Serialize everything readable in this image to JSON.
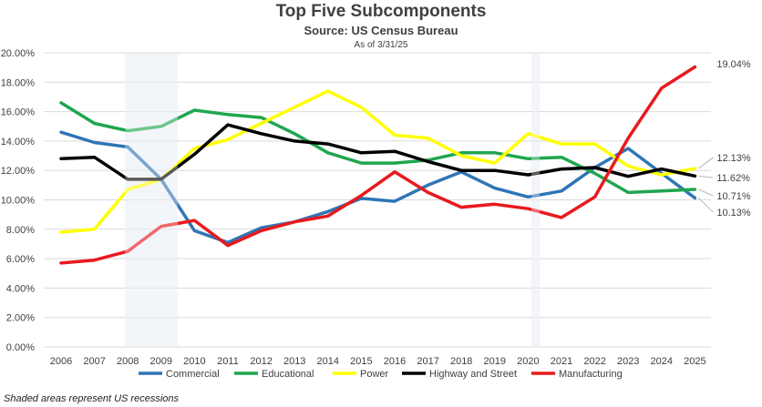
{
  "chart_data": {
    "type": "line",
    "title": "Top Five Subcomponents",
    "subtitle": "Source: US Census Bureau",
    "note": "As of 3/31/25",
    "x": [
      "2006",
      "2007",
      "2008",
      "2009",
      "2010",
      "2011",
      "2012",
      "2013",
      "2014",
      "2015",
      "2016",
      "2017",
      "2018",
      "2019",
      "2020",
      "2021",
      "2022",
      "2023",
      "2024",
      "2025"
    ],
    "ylim": [
      0,
      20
    ],
    "yticks": [
      "0.00%",
      "2.00%",
      "4.00%",
      "6.00%",
      "8.00%",
      "10.00%",
      "12.00%",
      "14.00%",
      "16.00%",
      "18.00%",
      "20.00%"
    ],
    "recessions": [
      [
        2007.92,
        2009.5
      ],
      [
        2020.1,
        2020.35
      ]
    ],
    "legend_position": "bottom",
    "series": [
      {
        "name": "Commercial",
        "color": "#2e75b6",
        "values": [
          14.6,
          13.9,
          13.6,
          11.4,
          7.9,
          7.1,
          8.1,
          8.5,
          9.2,
          10.1,
          9.9,
          11.0,
          11.9,
          10.8,
          10.2,
          10.6,
          12.2,
          13.5,
          11.8,
          10.13
        ],
        "end_label": "10.13%"
      },
      {
        "name": "Educational",
        "color": "#1fa64f",
        "values": [
          16.6,
          15.2,
          14.7,
          15.0,
          16.1,
          15.8,
          15.6,
          14.5,
          13.2,
          12.5,
          12.5,
          12.7,
          13.2,
          13.2,
          12.8,
          12.9,
          11.8,
          10.5,
          10.6,
          10.71
        ],
        "end_label": "10.71%"
      },
      {
        "name": "Power",
        "color": "#ffff00",
        "values": [
          7.8,
          8.0,
          10.7,
          11.4,
          13.5,
          14.1,
          15.2,
          16.3,
          17.4,
          16.3,
          14.4,
          14.2,
          13.0,
          12.5,
          14.5,
          13.8,
          13.8,
          12.3,
          11.7,
          12.13
        ],
        "end_label": "12.13%"
      },
      {
        "name": "Highway and Street",
        "color": "#000000",
        "values": [
          12.8,
          12.9,
          11.4,
          11.4,
          13.1,
          15.1,
          14.5,
          14.0,
          13.8,
          13.2,
          13.3,
          12.6,
          12.0,
          12.0,
          11.7,
          12.1,
          12.2,
          11.6,
          12.1,
          11.62
        ],
        "end_label": "11.62%"
      },
      {
        "name": "Manufacturing",
        "color": "#e8191d",
        "values": [
          5.7,
          5.9,
          6.5,
          8.2,
          8.6,
          6.9,
          7.9,
          8.5,
          8.9,
          10.3,
          11.9,
          10.5,
          9.5,
          9.7,
          9.4,
          8.8,
          10.2,
          14.2,
          17.6,
          19.04
        ],
        "end_label": "19.04%"
      }
    ]
  },
  "footnote": "Shaded areas represent US recessions"
}
